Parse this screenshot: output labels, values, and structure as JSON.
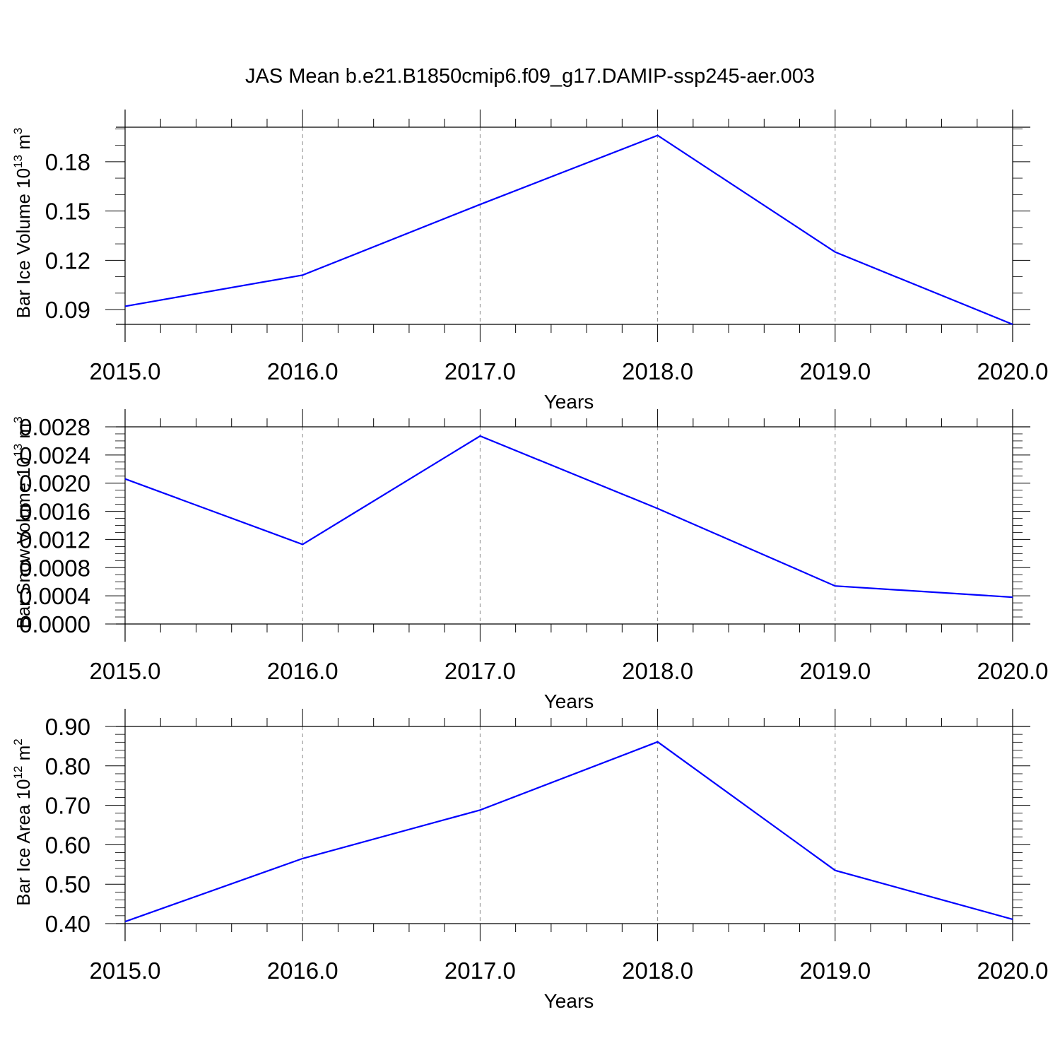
{
  "chart_data": [
    {
      "type": "line",
      "title": "JAS Mean b.e21.B1850cmip6.f09_g17.DAMIP-ssp245-aer.003",
      "xlabel": "Years",
      "ylabel": {
        "prefix": "Bar Ice Volume 10",
        "exp": "13",
        "unit": " m",
        "unit_exp": "3"
      },
      "xlim": [
        2015,
        2020
      ],
      "ylim": [
        0.081,
        0.201
      ],
      "x_ticks": [
        2015,
        2016,
        2017,
        2018,
        2019,
        2020
      ],
      "x_tick_labels": [
        "2015.0",
        "2016.0",
        "2017.0",
        "2018.0",
        "2019.0",
        "2020.0"
      ],
      "y_ticks": [
        0.09,
        0.12,
        0.15,
        0.18
      ],
      "y_tick_labels": [
        "0.09",
        "0.12",
        "0.15",
        "0.18"
      ],
      "y_minor_step": 0.01,
      "x_minor_step": 0.2,
      "vertical_grid": "dashed",
      "series": [
        {
          "color": "#0000ff",
          "x": [
            2015,
            2016,
            2017,
            2018,
            2019,
            2020
          ],
          "values": [
            0.092,
            0.111,
            0.154,
            0.196,
            0.125,
            0.081
          ]
        }
      ]
    },
    {
      "type": "line",
      "xlabel": "Years",
      "ylabel": {
        "prefix": "Bar Snow Volume 10",
        "exp": "13",
        "unit": " m",
        "unit_exp": "3"
      },
      "xlim": [
        2015,
        2020
      ],
      "ylim": [
        0.0,
        0.0028
      ],
      "x_ticks": [
        2015,
        2016,
        2017,
        2018,
        2019,
        2020
      ],
      "x_tick_labels": [
        "2015.0",
        "2016.0",
        "2017.0",
        "2018.0",
        "2019.0",
        "2020.0"
      ],
      "y_ticks": [
        0.0,
        0.0004,
        0.0008,
        0.0012,
        0.0016,
        0.002,
        0.0024,
        0.0028
      ],
      "y_tick_labels": [
        "0.0000",
        "0.0004",
        "0.0008",
        "0.0012",
        "0.0016",
        "0.0020",
        "0.0024",
        "0.0028"
      ],
      "y_minor_step": 0.0001,
      "x_minor_step": 0.2,
      "vertical_grid": "dashed",
      "series": [
        {
          "color": "#0000ff",
          "x": [
            2015,
            2016,
            2017,
            2018,
            2019,
            2020
          ],
          "values": [
            0.00206,
            0.00113,
            0.00267,
            0.00164,
            0.00054,
            0.00038
          ]
        }
      ]
    },
    {
      "type": "line",
      "xlabel": "Years",
      "ylabel": {
        "prefix": "Bar Ice Area 10",
        "exp": "12",
        "unit": " m",
        "unit_exp": "2"
      },
      "xlim": [
        2015,
        2020
      ],
      "ylim": [
        0.4,
        0.9
      ],
      "x_ticks": [
        2015,
        2016,
        2017,
        2018,
        2019,
        2020
      ],
      "x_tick_labels": [
        "2015.0",
        "2016.0",
        "2017.0",
        "2018.0",
        "2019.0",
        "2020.0"
      ],
      "y_ticks": [
        0.4,
        0.5,
        0.6,
        0.7,
        0.8,
        0.9
      ],
      "y_tick_labels": [
        "0.40",
        "0.50",
        "0.60",
        "0.70",
        "0.80",
        "0.90"
      ],
      "y_minor_step": 0.02,
      "x_minor_step": 0.2,
      "vertical_grid": "dashed",
      "series": [
        {
          "color": "#0000ff",
          "x": [
            2015,
            2016,
            2017,
            2018,
            2019,
            2020
          ],
          "values": [
            0.405,
            0.565,
            0.688,
            0.861,
            0.535,
            0.411
          ]
        }
      ]
    }
  ]
}
